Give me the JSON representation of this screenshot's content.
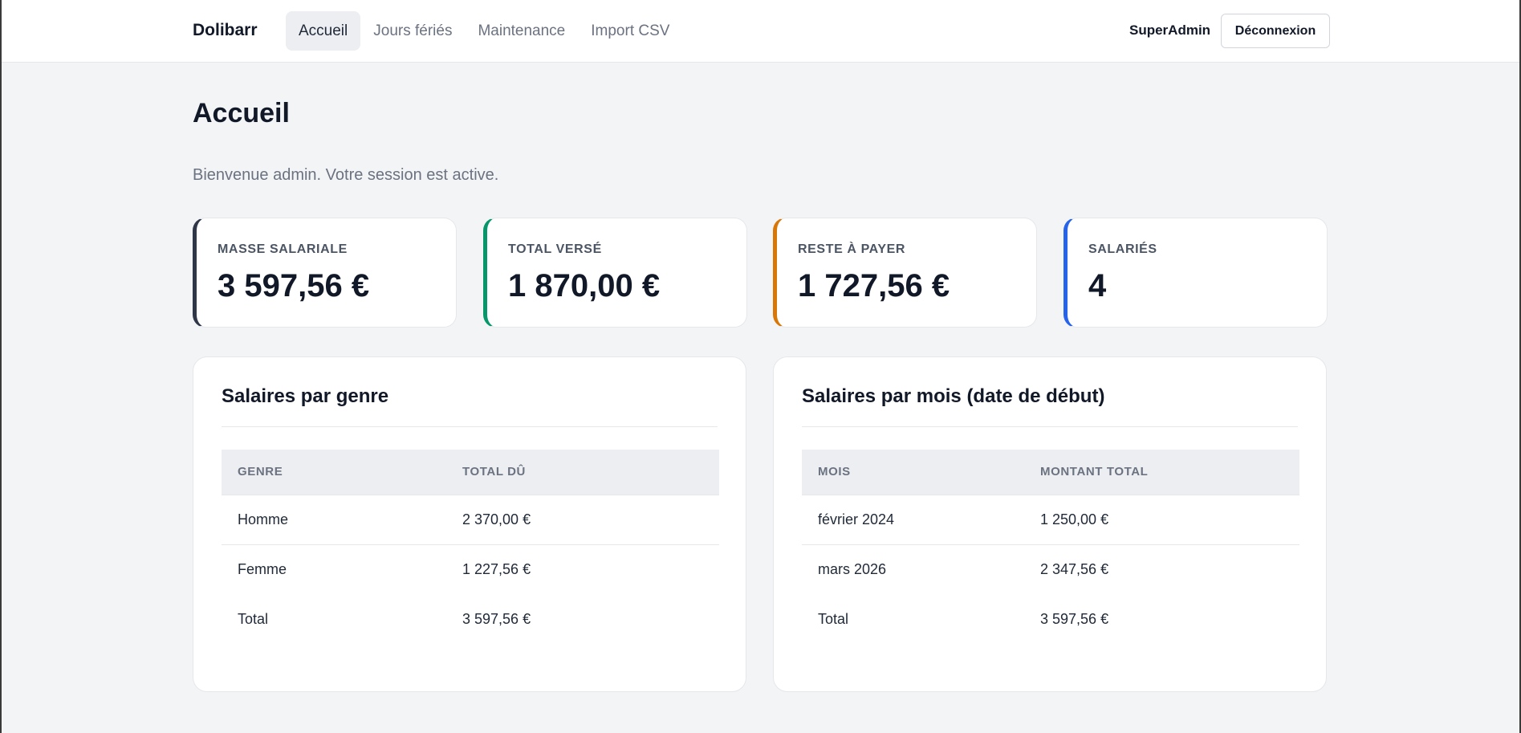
{
  "app": {
    "brand": "Dolibarr"
  },
  "nav": {
    "items": [
      {
        "label": "Accueil",
        "active": true
      },
      {
        "label": "Jours fériés",
        "active": false
      },
      {
        "label": "Maintenance",
        "active": false
      },
      {
        "label": "Import CSV",
        "active": false
      }
    ]
  },
  "user": {
    "name": "SuperAdmin",
    "logout_label": "Déconnexion"
  },
  "page": {
    "title": "Accueil",
    "welcome": "Bienvenue admin. Votre session est active."
  },
  "stats": [
    {
      "label": "MASSE SALARIALE",
      "value": "3 597,56 €",
      "accent": "#2f3648"
    },
    {
      "label": "TOTAL VERSÉ",
      "value": "1 870,00 €",
      "accent": "#059669"
    },
    {
      "label": "RESTE À PAYER",
      "value": "1 727,56 €",
      "accent": "#d97706"
    },
    {
      "label": "SALARIÉS",
      "value": "4",
      "accent": "#2563eb"
    }
  ],
  "panels": {
    "gender": {
      "title": "Salaires par genre",
      "headers": [
        "GENRE",
        "TOTAL DÛ"
      ],
      "rows": [
        [
          "Homme",
          "2 370,00 €"
        ],
        [
          "Femme",
          "1 227,56 €"
        ],
        [
          "Total",
          "3 597,56 €"
        ]
      ]
    },
    "month": {
      "title": "Salaires par mois (date de début)",
      "headers": [
        "MOIS",
        "MONTANT TOTAL"
      ],
      "rows": [
        [
          "février 2024",
          "1 250,00 €"
        ],
        [
          "mars 2026",
          "2 347,56 €"
        ],
        [
          "Total",
          "3 597,56 €"
        ]
      ]
    }
  }
}
